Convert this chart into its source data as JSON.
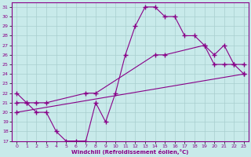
{
  "xlabel": "Windchill (Refroidissement éolien,°C)",
  "bg_color": "#c8eaea",
  "line_color": "#880088",
  "grid_color": "#a8cece",
  "xlim": [
    -0.5,
    23.5
  ],
  "ylim": [
    17,
    31.5
  ],
  "xticks": [
    0,
    1,
    2,
    3,
    4,
    5,
    6,
    7,
    8,
    9,
    10,
    11,
    12,
    13,
    14,
    15,
    16,
    17,
    18,
    19,
    20,
    21,
    22,
    23
  ],
  "yticks": [
    17,
    18,
    19,
    20,
    21,
    22,
    23,
    24,
    25,
    26,
    27,
    28,
    29,
    30,
    31
  ],
  "line1_x": [
    0,
    1,
    2,
    3,
    4,
    5,
    6,
    7,
    8,
    9,
    10,
    11,
    12,
    13,
    14,
    15,
    16,
    17,
    18,
    19,
    20,
    21,
    22,
    23
  ],
  "line1_y": [
    22,
    21,
    20,
    20,
    18,
    17,
    17,
    17,
    21,
    19,
    22,
    26,
    29,
    31,
    31,
    30,
    30,
    28,
    28,
    27,
    25,
    25,
    25,
    24
  ],
  "line2_x": [
    0,
    1,
    2,
    3,
    7,
    8,
    14,
    15,
    19,
    20,
    21,
    22,
    23
  ],
  "line2_y": [
    21,
    21,
    21,
    21,
    22,
    22,
    26,
    26,
    27,
    26,
    27,
    25,
    25
  ],
  "line3_x": [
    0,
    23
  ],
  "line3_y": [
    20,
    24
  ],
  "marker": "+",
  "markersize": 4,
  "linewidth": 0.8
}
